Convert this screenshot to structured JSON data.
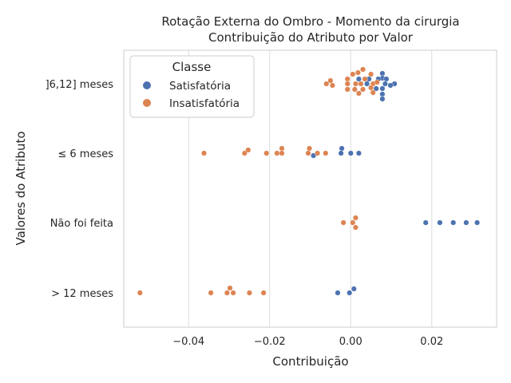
{
  "chart_data": {
    "type": "scatter",
    "title": "Rotação Externa do Ombro - Momento da cirurgia",
    "subtitle": "Contribuição do Atributo por Valor",
    "xlabel": "Contribuição",
    "ylabel": "Valores do Atributo",
    "xlim": [
      -0.056,
      0.036
    ],
    "x_ticks": [
      -0.04,
      -0.02,
      0.0,
      0.02
    ],
    "x_tick_labels": [
      "−0.04",
      "−0.02",
      "0.00",
      "0.02"
    ],
    "categories": [
      "]6,12] meses",
      "≤ 6 meses",
      "Não foi feita",
      "> 12 meses"
    ],
    "grid": true,
    "legend": {
      "title": "Classe",
      "position": "top-left"
    },
    "series": [
      {
        "name": "Satisfatória",
        "color": "#4c72b0",
        "points": [
          {
            "category": 0,
            "x": 0.0078,
            "offset": -13
          },
          {
            "category": 0,
            "x": 0.0078,
            "offset": -7
          },
          {
            "category": 0,
            "x": 0.0088,
            "offset": -6
          },
          {
            "category": 0,
            "x": 0.0068,
            "offset": -6
          },
          {
            "category": 0,
            "x": 0.002,
            "offset": -6
          },
          {
            "category": 0,
            "x": 0.0045,
            "offset": -6
          },
          {
            "category": 0,
            "x": 0.0085,
            "offset": 0
          },
          {
            "category": 0,
            "x": 0.0108,
            "offset": 0
          },
          {
            "category": 0,
            "x": 0.0098,
            "offset": 2
          },
          {
            "category": 0,
            "x": 0.004,
            "offset": 0
          },
          {
            "category": 0,
            "x": 0.0063,
            "offset": 6
          },
          {
            "category": 0,
            "x": 0.0078,
            "offset": 6
          },
          {
            "category": 0,
            "x": 0.0078,
            "offset": 13
          },
          {
            "category": 0,
            "x": 0.0078,
            "offset": 19
          },
          {
            "category": 1,
            "x": -0.0022,
            "offset": -6
          },
          {
            "category": 1,
            "x": -0.0024,
            "offset": 0
          },
          {
            "category": 1,
            "x": 0.0,
            "offset": 0
          },
          {
            "category": 1,
            "x": 0.002,
            "offset": 0
          },
          {
            "category": 1,
            "x": -0.0092,
            "offset": 3
          },
          {
            "category": 2,
            "x": 0.0185,
            "offset": 0
          },
          {
            "category": 2,
            "x": 0.022,
            "offset": 0
          },
          {
            "category": 2,
            "x": 0.0253,
            "offset": 0
          },
          {
            "category": 2,
            "x": 0.0285,
            "offset": 0
          },
          {
            "category": 2,
            "x": 0.0312,
            "offset": 0
          },
          {
            "category": 3,
            "x": 0.0008,
            "offset": -5
          },
          {
            "category": 3,
            "x": -0.0032,
            "offset": 0
          },
          {
            "category": 3,
            "x": -0.0003,
            "offset": 0
          }
        ]
      },
      {
        "name": "Insatisfatória",
        "color": "#dd8452",
        "points": [
          {
            "category": 0,
            "x": 0.003,
            "offset": -18
          },
          {
            "category": 0,
            "x": 0.0018,
            "offset": -14
          },
          {
            "category": 0,
            "x": 0.005,
            "offset": -12
          },
          {
            "category": 0,
            "x": 0.0005,
            "offset": -12
          },
          {
            "category": 0,
            "x": -0.0008,
            "offset": -6
          },
          {
            "category": 0,
            "x": 0.0035,
            "offset": -6
          },
          {
            "category": 0,
            "x": -0.005,
            "offset": -4
          },
          {
            "category": 0,
            "x": -0.006,
            "offset": 0
          },
          {
            "category": 0,
            "x": -0.0045,
            "offset": 2
          },
          {
            "category": 0,
            "x": -0.0008,
            "offset": 0
          },
          {
            "category": 0,
            "x": 0.0012,
            "offset": 0
          },
          {
            "category": 0,
            "x": 0.0025,
            "offset": 0
          },
          {
            "category": 0,
            "x": 0.0055,
            "offset": 0
          },
          {
            "category": 0,
            "x": 0.0065,
            "offset": -2
          },
          {
            "category": 0,
            "x": -0.0008,
            "offset": 7
          },
          {
            "category": 0,
            "x": 0.001,
            "offset": 7
          },
          {
            "category": 0,
            "x": 0.003,
            "offset": 7
          },
          {
            "category": 0,
            "x": 0.005,
            "offset": 5
          },
          {
            "category": 0,
            "x": 0.002,
            "offset": 12
          },
          {
            "category": 0,
            "x": 0.0055,
            "offset": 11
          },
          {
            "category": 1,
            "x": -0.0362,
            "offset": 0
          },
          {
            "category": 1,
            "x": -0.0262,
            "offset": 0
          },
          {
            "category": 1,
            "x": -0.0253,
            "offset": -4
          },
          {
            "category": 1,
            "x": -0.0208,
            "offset": 0
          },
          {
            "category": 1,
            "x": -0.0182,
            "offset": 0
          },
          {
            "category": 1,
            "x": -0.017,
            "offset": -6
          },
          {
            "category": 1,
            "x": -0.017,
            "offset": 0
          },
          {
            "category": 1,
            "x": -0.0102,
            "offset": -6
          },
          {
            "category": 1,
            "x": -0.0105,
            "offset": 0
          },
          {
            "category": 1,
            "x": -0.0082,
            "offset": 0
          },
          {
            "category": 1,
            "x": -0.0062,
            "offset": 0
          },
          {
            "category": 2,
            "x": 0.0012,
            "offset": -6
          },
          {
            "category": 2,
            "x": 0.0005,
            "offset": 0
          },
          {
            "category": 2,
            "x": -0.0018,
            "offset": 0
          },
          {
            "category": 2,
            "x": 0.0012,
            "offset": 6
          },
          {
            "category": 3,
            "x": -0.052,
            "offset": 0
          },
          {
            "category": 3,
            "x": -0.0345,
            "offset": 0
          },
          {
            "category": 3,
            "x": -0.0298,
            "offset": -6
          },
          {
            "category": 3,
            "x": -0.0305,
            "offset": 0
          },
          {
            "category": 3,
            "x": -0.029,
            "offset": 0
          },
          {
            "category": 3,
            "x": -0.025,
            "offset": 0
          },
          {
            "category": 3,
            "x": -0.0215,
            "offset": 0
          }
        ]
      }
    ]
  }
}
